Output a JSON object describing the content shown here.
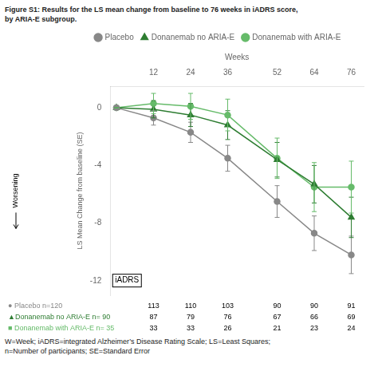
{
  "chart_data": {
    "type": "line",
    "title": [
      "Figure S1: Results for the LS mean change from baseline to 76 weeks in iADRS score,",
      "by ARIA-E subgroup."
    ],
    "x_label": "Weeks",
    "y_label": "LS Mean Change from baseline (SE)",
    "x": [
      0,
      12,
      24,
      36,
      52,
      64,
      76
    ],
    "series": [
      {
        "name": "Placebo",
        "color": "#888888",
        "marker": "circle",
        "values": [
          0,
          -0.7,
          -1.7,
          -3.5,
          -6.5,
          -8.7,
          -10.2
        ],
        "se": [
          0,
          0.5,
          0.7,
          0.9,
          1.1,
          1.2,
          1.3
        ],
        "table_label": "● Placebo n=120",
        "table_values": [
          113,
          110,
          103,
          90,
          90,
          91
        ]
      },
      {
        "name": "Donanemab no ARIA-E",
        "color": "#2e7d32",
        "marker": "triangle",
        "values": [
          0,
          -0.1,
          -0.5,
          -1.2,
          -3.6,
          -5.3,
          -7.6
        ],
        "se": [
          0,
          0.6,
          0.8,
          1.0,
          1.2,
          1.3,
          1.4
        ],
        "table_label": "▲Donanemab no ARIA-E n= 90",
        "table_values": [
          87,
          79,
          76,
          67,
          66,
          69
        ]
      },
      {
        "name": "Donanemab with ARIA-E",
        "color": "#66bb6a",
        "marker": "circle",
        "values": [
          0,
          0.3,
          0.1,
          -0.5,
          -3.5,
          -5.5,
          -5.5
        ],
        "se": [
          0,
          0.7,
          0.9,
          1.1,
          1.4,
          1.7,
          1.8
        ],
        "table_label": "■ Donanemab with ARIA-E n= 35",
        "table_values": [
          33,
          33,
          26,
          21,
          23,
          24
        ]
      }
    ],
    "xlim": [
      -2,
      80
    ],
    "xticks": [
      12,
      24,
      36,
      52,
      64,
      76
    ],
    "ylim": [
      -13,
      1.5
    ],
    "yticks": [
      0,
      -4,
      -8,
      -12
    ],
    "grid": false,
    "legend": "top",
    "annotations": [
      "iADRS",
      "Worsening"
    ],
    "footnotes": [
      "W=Week; iADRS=integrated Alzheimer’s Disease Rating Scale; LS=Least Squares;",
      "n=Number of participants; SE=Standard Error"
    ]
  }
}
